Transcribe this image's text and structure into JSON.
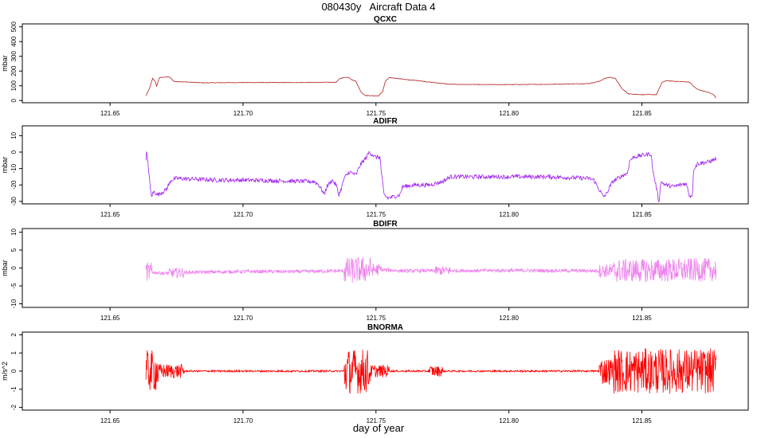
{
  "figure": {
    "title": "080430y   Aircraft Data 4",
    "xlabel": "day of year"
  },
  "chart_data": [
    {
      "type": "line",
      "title": "QCXC",
      "ylabel": "mbar",
      "color": "#b22222",
      "xlim": [
        121.617,
        121.89
      ],
      "ylim": [
        -15,
        520
      ],
      "xticks": [
        121.65,
        121.7,
        121.75,
        121.8,
        121.85
      ],
      "xtick_labels": [
        "121.65",
        "121.70",
        "121.75",
        "121.80",
        "121.85"
      ],
      "yticks": [
        0,
        100,
        200,
        300,
        400,
        500
      ],
      "ytick_labels": [
        "0",
        "100",
        "200",
        "300",
        "400",
        "500"
      ],
      "noise": 2,
      "points": [
        [
          121.6635,
          30
        ],
        [
          121.665,
          90
        ],
        [
          121.666,
          150
        ],
        [
          121.667,
          130
        ],
        [
          121.6675,
          95
        ],
        [
          121.6685,
          155
        ],
        [
          121.671,
          160
        ],
        [
          121.6725,
          158
        ],
        [
          121.674,
          130
        ],
        [
          121.685,
          120
        ],
        [
          121.7,
          122
        ],
        [
          121.72,
          122
        ],
        [
          121.735,
          124
        ],
        [
          121.7365,
          150
        ],
        [
          121.7385,
          158
        ],
        [
          121.74,
          155
        ],
        [
          121.741,
          140
        ],
        [
          121.7425,
          130
        ],
        [
          121.7435,
          90
        ],
        [
          121.7445,
          55
        ],
        [
          121.746,
          35
        ],
        [
          121.7485,
          32
        ],
        [
          121.751,
          32
        ],
        [
          121.7525,
          60
        ],
        [
          121.7535,
          130
        ],
        [
          121.755,
          155
        ],
        [
          121.757,
          152
        ],
        [
          121.759,
          148
        ],
        [
          121.762,
          140
        ],
        [
          121.766,
          135
        ],
        [
          121.77,
          125
        ],
        [
          121.778,
          110
        ],
        [
          121.79,
          108
        ],
        [
          121.8,
          108
        ],
        [
          121.815,
          110
        ],
        [
          121.83,
          115
        ],
        [
          121.834,
          130
        ],
        [
          121.836,
          150
        ],
        [
          121.838,
          158
        ],
        [
          121.84,
          150
        ],
        [
          121.8415,
          110
        ],
        [
          121.8425,
          80
        ],
        [
          121.845,
          45
        ],
        [
          121.85,
          40
        ],
        [
          121.8555,
          40
        ],
        [
          121.8565,
          80
        ],
        [
          121.8575,
          120
        ],
        [
          121.859,
          135
        ],
        [
          121.863,
          130
        ],
        [
          121.868,
          125
        ],
        [
          121.8695,
          95
        ],
        [
          121.871,
          75
        ],
        [
          121.873,
          65
        ],
        [
          121.875,
          55
        ],
        [
          121.877,
          40
        ],
        [
          121.878,
          15
        ]
      ]
    },
    {
      "type": "line",
      "title": "ADIFR",
      "ylabel": "mbar",
      "color": "#a020f0",
      "xlim": [
        121.617,
        121.89
      ],
      "ylim": [
        -31.5,
        16
      ],
      "xticks": [
        121.65,
        121.7,
        121.75,
        121.8,
        121.85
      ],
      "xtick_labels": [
        "121.65",
        "121.70",
        "121.75",
        "121.80",
        "121.85"
      ],
      "yticks": [
        -30,
        -20,
        -10,
        0,
        10
      ],
      "ytick_labels": [
        "-30",
        "-20",
        "-10",
        "0",
        "10"
      ],
      "noise": 1.3,
      "points": [
        [
          121.6635,
          -6
        ],
        [
          121.6638,
          2
        ],
        [
          121.664,
          -4
        ],
        [
          121.6645,
          -10
        ],
        [
          121.665,
          -20
        ],
        [
          121.6655,
          -27
        ],
        [
          121.6665,
          -24
        ],
        [
          121.668,
          -26
        ],
        [
          121.671,
          -23
        ],
        [
          121.673,
          -17
        ],
        [
          121.675,
          -16
        ],
        [
          121.69,
          -17
        ],
        [
          121.7,
          -17
        ],
        [
          121.715,
          -17.5
        ],
        [
          121.727,
          -18
        ],
        [
          121.7285,
          -20
        ],
        [
          121.73,
          -24
        ],
        [
          121.7305,
          -26
        ],
        [
          121.7315,
          -21
        ],
        [
          121.7335,
          -17
        ],
        [
          121.735,
          -20
        ],
        [
          121.736,
          -26
        ],
        [
          121.737,
          -22
        ],
        [
          121.738,
          -16
        ],
        [
          121.74,
          -12
        ],
        [
          121.7425,
          -14
        ],
        [
          121.744,
          -8
        ],
        [
          121.746,
          -4
        ],
        [
          121.7475,
          0
        ],
        [
          121.749,
          -2
        ],
        [
          121.7495,
          -3
        ],
        [
          121.7515,
          -3
        ],
        [
          121.752,
          -12
        ],
        [
          121.753,
          -26
        ],
        [
          121.7545,
          -28
        ],
        [
          121.757,
          -27
        ],
        [
          121.759,
          -26
        ],
        [
          121.76,
          -21
        ],
        [
          121.765,
          -20
        ],
        [
          121.77,
          -20
        ],
        [
          121.775,
          -18
        ],
        [
          121.778,
          -15
        ],
        [
          121.79,
          -15
        ],
        [
          121.8,
          -15
        ],
        [
          121.815,
          -15
        ],
        [
          121.83,
          -16
        ],
        [
          121.832,
          -17
        ],
        [
          121.834,
          -23
        ],
        [
          121.8355,
          -27
        ],
        [
          121.8365,
          -26
        ],
        [
          121.838,
          -21
        ],
        [
          121.839,
          -18
        ],
        [
          121.841,
          -16
        ],
        [
          121.843,
          -14
        ],
        [
          121.8445,
          -13
        ],
        [
          121.8455,
          -5
        ],
        [
          121.847,
          -3
        ],
        [
          121.85,
          -2
        ],
        [
          121.8535,
          -1
        ],
        [
          121.854,
          -10
        ],
        [
          121.8555,
          -22
        ],
        [
          121.8565,
          -31
        ],
        [
          121.857,
          -18
        ],
        [
          121.859,
          -20
        ],
        [
          121.862,
          -21
        ],
        [
          121.8665,
          -19
        ],
        [
          121.867,
          -21
        ],
        [
          121.868,
          -27
        ],
        [
          121.869,
          -26
        ],
        [
          121.8695,
          -10
        ],
        [
          121.871,
          -7
        ],
        [
          121.875,
          -6
        ],
        [
          121.878,
          -4
        ]
      ]
    },
    {
      "type": "line",
      "title": "BDIFR",
      "ylabel": "mbar",
      "color": "#ee82ee",
      "xlim": [
        121.617,
        121.89
      ],
      "ylim": [
        -11,
        11
      ],
      "xticks": [
        121.65,
        121.7,
        121.75,
        121.8,
        121.85
      ],
      "xtick_labels": [
        "121.65",
        "121.70",
        "121.75",
        "121.80",
        "121.85"
      ],
      "yticks": [
        -10,
        -5,
        0,
        5,
        10
      ],
      "ytick_labels": [
        "-10",
        "-5",
        "0",
        "5",
        "10"
      ],
      "noise": 0.5,
      "spikes": [
        [
          121.6635,
          121.666,
          2.2
        ],
        [
          121.672,
          121.678,
          0.9
        ],
        [
          121.738,
          121.748,
          3.2
        ],
        [
          121.7465,
          121.752,
          1.2
        ],
        [
          121.772,
          121.778,
          0.8
        ],
        [
          121.834,
          121.8395,
          1.4
        ],
        [
          121.8395,
          121.878,
          2.8
        ]
      ],
      "points": [
        [
          121.6635,
          -1
        ],
        [
          121.67,
          -1.5
        ],
        [
          121.68,
          -1.2
        ],
        [
          121.7,
          -1.0
        ],
        [
          121.72,
          -1.0
        ],
        [
          121.738,
          -0.8
        ],
        [
          121.745,
          -0.5
        ],
        [
          121.752,
          -0.5
        ],
        [
          121.76,
          -0.8
        ],
        [
          121.8,
          -0.7
        ],
        [
          121.835,
          -0.8
        ],
        [
          121.878,
          -0.5
        ]
      ]
    },
    {
      "type": "line",
      "title": "BNORMA",
      "ylabel": "m/s^2",
      "color": "#ff0000",
      "xlim": [
        121.617,
        121.89
      ],
      "ylim": [
        -2.15,
        2.15
      ],
      "xticks": [
        121.65,
        121.7,
        121.75,
        121.8,
        121.85
      ],
      "xtick_labels": [
        "121.65",
        "121.70",
        "121.75",
        "121.80",
        "121.85"
      ],
      "yticks": [
        -2,
        -1,
        0,
        1,
        2
      ],
      "ytick_labels": [
        "-2",
        "-1",
        "0",
        "1",
        "2"
      ],
      "noise": 0.05,
      "spikes": [
        [
          121.6635,
          121.668,
          1.1
        ],
        [
          121.668,
          121.678,
          0.35
        ],
        [
          121.738,
          121.748,
          1.2
        ],
        [
          121.748,
          121.755,
          0.3
        ],
        [
          121.77,
          121.775,
          0.25
        ],
        [
          121.834,
          121.8395,
          0.7
        ],
        [
          121.8395,
          121.878,
          1.2
        ]
      ],
      "points": [
        [
          121.6635,
          0
        ],
        [
          121.878,
          0
        ]
      ]
    }
  ]
}
